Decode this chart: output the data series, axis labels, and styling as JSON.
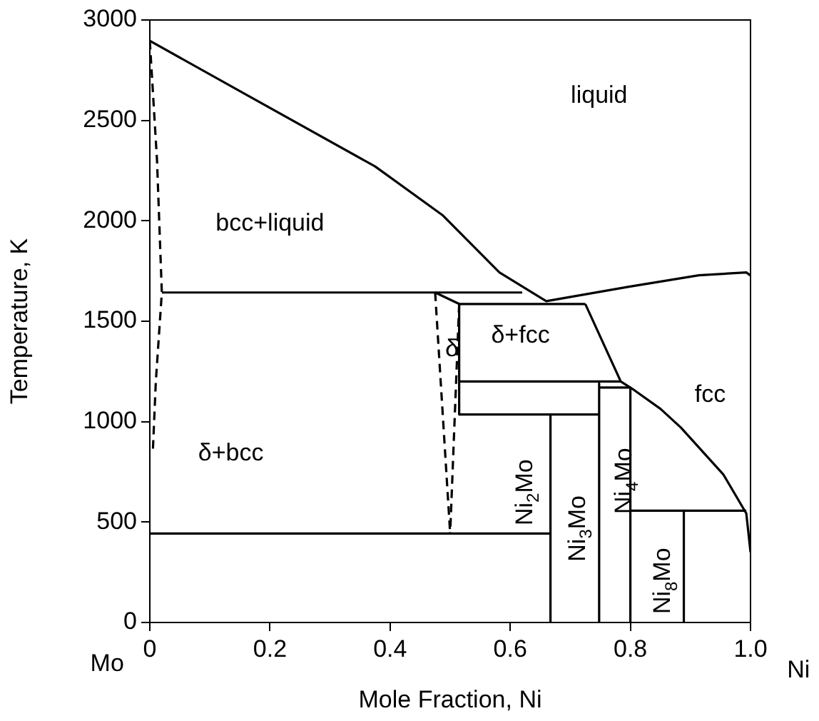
{
  "chart_data": {
    "type": "line",
    "xlabel": "Mole Fraction, Ni",
    "ylabel": "Temperature, K",
    "xlim": [
      0,
      1
    ],
    "ylim": [
      0,
      3000
    ],
    "xticks": [
      0,
      0.2,
      0.4,
      0.6,
      0.8,
      {
        "value": 1,
        "label": "1.0"
      }
    ],
    "yticks": [
      0,
      500,
      1000,
      1500,
      2000,
      2500,
      3000
    ],
    "grid": false,
    "legend": false,
    "marker": "none",
    "line_style": "solid",
    "annotations": [
      "Mo",
      "Ni",
      "liquid",
      "bcc+liquid",
      "δ+fcc",
      "δ",
      "δ+bcc",
      "fcc",
      "Ni$_{2}$Mo",
      "Ni$_{3}$Mo",
      "Ni$_{4}$Mo",
      "Ni$_{8}$Mo"
    ],
    "series": [
      {
        "color": "#000000",
        "x": [
          0,
          0.16,
          0.375,
          0.487,
          0.582,
          0.66,
          0.796,
          0.914,
          0.993,
          1
        ],
        "values": [
          2896,
          2629,
          2271,
          2029,
          1743,
          1600,
          1671,
          1729,
          1743,
          1728
        ]
      },
      {
        "color": "#000000",
        "line_style": "dashed",
        "x": [
          0,
          0.012,
          0.02,
          0.01,
          0.005
        ],
        "values": [
          2896,
          2300,
          1643,
          1200,
          850
        ]
      },
      {
        "color": "#000000",
        "x": [
          0.02,
          0.62
        ],
        "values": [
          1643,
          1643
        ]
      },
      {
        "color": "#000000",
        "line_style": "dashed",
        "x": [
          0.475,
          0.5
        ],
        "values": [
          1643,
          443
        ]
      },
      {
        "color": "#000000",
        "line_style": "dashed",
        "x": [
          0.515,
          0.5
        ],
        "values": [
          1586,
          443
        ]
      },
      {
        "color": "#000000",
        "x": [
          0.475,
          0.515,
          0.725
        ],
        "values": [
          1643,
          1586,
          1586
        ]
      },
      {
        "color": "#000000",
        "x": [
          0.515,
          0.515
        ],
        "values": [
          1586,
          1036
        ]
      },
      {
        "color": "#000000",
        "x": [
          0.515,
          0.784
        ],
        "values": [
          1200,
          1200
        ]
      },
      {
        "color": "#000000",
        "x": [
          0.725,
          0.784,
          0.803,
          0.85,
          0.884,
          0.955,
          0.993,
          1
        ],
        "values": [
          1586,
          1200,
          1164,
          1064,
          971,
          736,
          543,
          350
        ]
      },
      {
        "color": "#000000",
        "x": [
          0.515,
          0.748
        ],
        "values": [
          1036,
          1036
        ]
      },
      {
        "color": "#000000",
        "x": [
          0.667,
          0.667
        ],
        "values": [
          1036,
          0
        ]
      },
      {
        "color": "#000000",
        "x": [
          0,
          0.667
        ],
        "values": [
          443,
          443
        ]
      },
      {
        "color": "#000000",
        "x": [
          0.748,
          0.748
        ],
        "values": [
          1190,
          0
        ]
      },
      {
        "color": "#000000",
        "x": [
          0.748,
          0.8
        ],
        "values": [
          1170,
          1170
        ]
      },
      {
        "color": "#000000",
        "x": [
          0.8,
          0.8
        ],
        "values": [
          1170,
          0
        ]
      },
      {
        "color": "#000000",
        "x": [
          0.8,
          0.993
        ],
        "values": [
          557,
          557
        ]
      },
      {
        "color": "#000000",
        "x": [
          0.889,
          0.889
        ],
        "values": [
          557,
          0
        ]
      }
    ]
  }
}
